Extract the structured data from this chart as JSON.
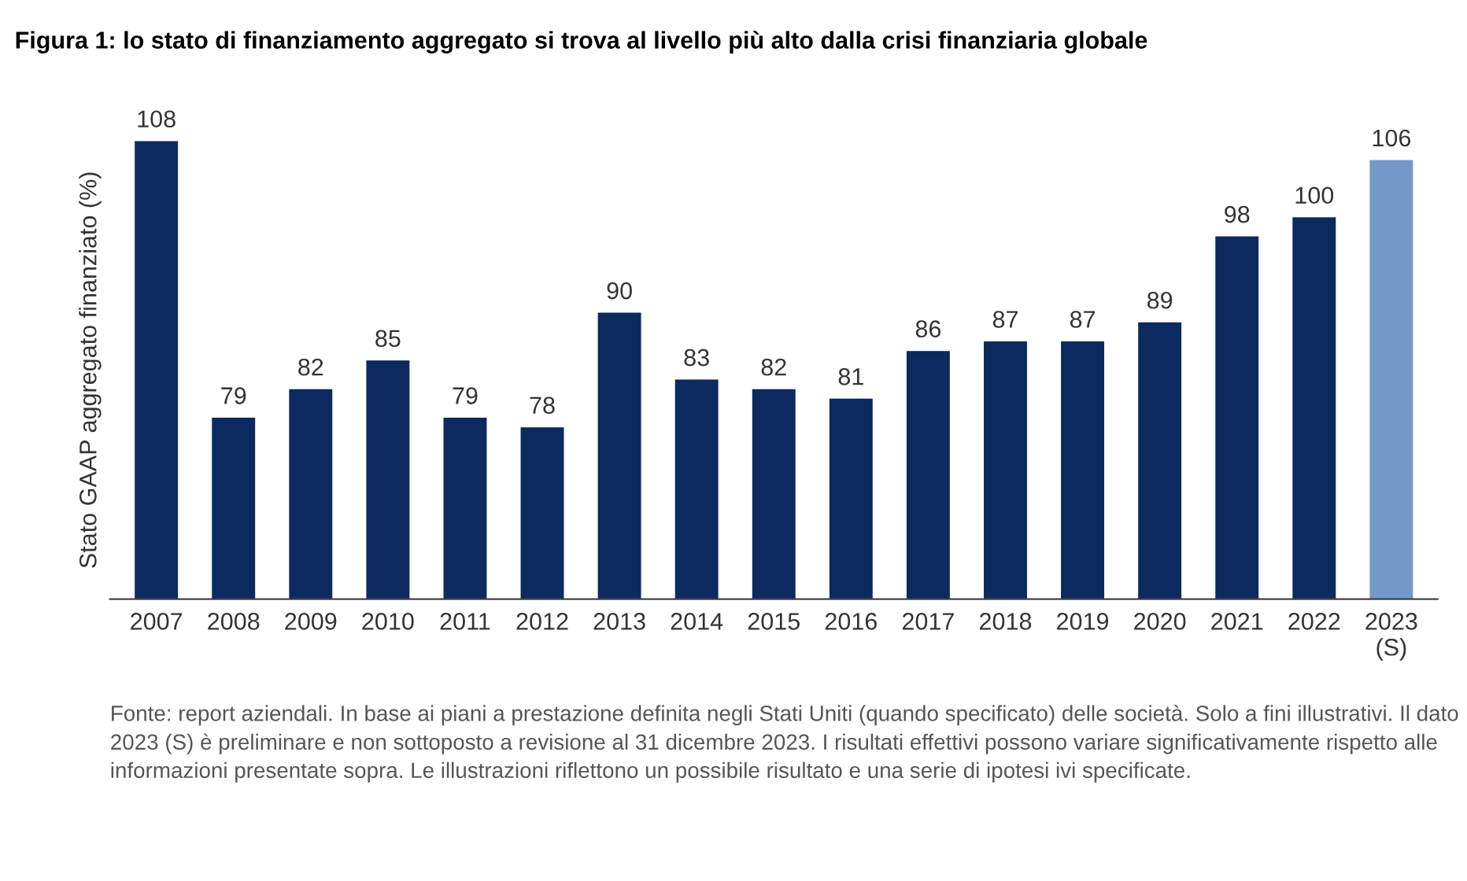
{
  "chart_data": {
    "type": "bar",
    "title": "Figura 1: lo stato di finanziamento aggregato si trova al livello più alto dalla crisi finanziaria globale",
    "ylabel": "Stato GAAP aggregato finanziato (%)",
    "categories": [
      "2007",
      "2008",
      "2009",
      "2010",
      "2011",
      "2012",
      "2013",
      "2014",
      "2015",
      "2016",
      "2017",
      "2018",
      "2019",
      "2020",
      "2021",
      "2022",
      "2023\n(S)"
    ],
    "values": [
      108,
      79,
      82,
      85,
      79,
      78,
      90,
      83,
      82,
      81,
      86,
      87,
      87,
      89,
      98,
      100,
      106
    ],
    "colors": [
      "#0c2a5f",
      "#0c2a5f",
      "#0c2a5f",
      "#0c2a5f",
      "#0c2a5f",
      "#0c2a5f",
      "#0c2a5f",
      "#0c2a5f",
      "#0c2a5f",
      "#0c2a5f",
      "#0c2a5f",
      "#0c2a5f",
      "#0c2a5f",
      "#0c2a5f",
      "#0c2a5f",
      "#0c2a5f",
      "#7299c8"
    ],
    "ylim": [
      60,
      108
    ],
    "data_labels": true,
    "grid": false,
    "legend": false,
    "annotations": [
      "Fonte: report aziendali. In base ai piani a prestazione definita negli Stati Uniti (quando specificato) delle società. Solo a fini illustrativi. Il dato 2023 (S) è preliminare e non sottoposto a revisione al 31 dicembre 2023. I risultati effettivi possono variare significativamente rispetto alle informazioni presentate sopra. Le illustrazioni riflettono un possibile risultato e una serie di ipotesi ivi specificate."
    ]
  }
}
